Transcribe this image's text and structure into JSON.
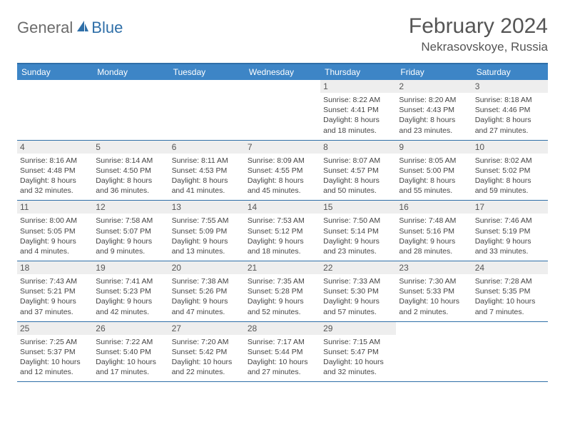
{
  "brand": {
    "part1": "General",
    "part2": "Blue"
  },
  "title": "February 2024",
  "location": "Nekrasovskoye, Russia",
  "colors": {
    "header_bar": "#3d85c6",
    "accent_line": "#2f6fa8",
    "daynum_bg": "#eeeeee",
    "text": "#444444",
    "title_text": "#555555"
  },
  "day_names": [
    "Sunday",
    "Monday",
    "Tuesday",
    "Wednesday",
    "Thursday",
    "Friday",
    "Saturday"
  ],
  "weeks": [
    [
      null,
      null,
      null,
      null,
      {
        "n": "1",
        "sr": "Sunrise: 8:22 AM",
        "ss": "Sunset: 4:41 PM",
        "d1": "Daylight: 8 hours",
        "d2": "and 18 minutes."
      },
      {
        "n": "2",
        "sr": "Sunrise: 8:20 AM",
        "ss": "Sunset: 4:43 PM",
        "d1": "Daylight: 8 hours",
        "d2": "and 23 minutes."
      },
      {
        "n": "3",
        "sr": "Sunrise: 8:18 AM",
        "ss": "Sunset: 4:46 PM",
        "d1": "Daylight: 8 hours",
        "d2": "and 27 minutes."
      }
    ],
    [
      {
        "n": "4",
        "sr": "Sunrise: 8:16 AM",
        "ss": "Sunset: 4:48 PM",
        "d1": "Daylight: 8 hours",
        "d2": "and 32 minutes."
      },
      {
        "n": "5",
        "sr": "Sunrise: 8:14 AM",
        "ss": "Sunset: 4:50 PM",
        "d1": "Daylight: 8 hours",
        "d2": "and 36 minutes."
      },
      {
        "n": "6",
        "sr": "Sunrise: 8:11 AM",
        "ss": "Sunset: 4:53 PM",
        "d1": "Daylight: 8 hours",
        "d2": "and 41 minutes."
      },
      {
        "n": "7",
        "sr": "Sunrise: 8:09 AM",
        "ss": "Sunset: 4:55 PM",
        "d1": "Daylight: 8 hours",
        "d2": "and 45 minutes."
      },
      {
        "n": "8",
        "sr": "Sunrise: 8:07 AM",
        "ss": "Sunset: 4:57 PM",
        "d1": "Daylight: 8 hours",
        "d2": "and 50 minutes."
      },
      {
        "n": "9",
        "sr": "Sunrise: 8:05 AM",
        "ss": "Sunset: 5:00 PM",
        "d1": "Daylight: 8 hours",
        "d2": "and 55 minutes."
      },
      {
        "n": "10",
        "sr": "Sunrise: 8:02 AM",
        "ss": "Sunset: 5:02 PM",
        "d1": "Daylight: 8 hours",
        "d2": "and 59 minutes."
      }
    ],
    [
      {
        "n": "11",
        "sr": "Sunrise: 8:00 AM",
        "ss": "Sunset: 5:05 PM",
        "d1": "Daylight: 9 hours",
        "d2": "and 4 minutes."
      },
      {
        "n": "12",
        "sr": "Sunrise: 7:58 AM",
        "ss": "Sunset: 5:07 PM",
        "d1": "Daylight: 9 hours",
        "d2": "and 9 minutes."
      },
      {
        "n": "13",
        "sr": "Sunrise: 7:55 AM",
        "ss": "Sunset: 5:09 PM",
        "d1": "Daylight: 9 hours",
        "d2": "and 13 minutes."
      },
      {
        "n": "14",
        "sr": "Sunrise: 7:53 AM",
        "ss": "Sunset: 5:12 PM",
        "d1": "Daylight: 9 hours",
        "d2": "and 18 minutes."
      },
      {
        "n": "15",
        "sr": "Sunrise: 7:50 AM",
        "ss": "Sunset: 5:14 PM",
        "d1": "Daylight: 9 hours",
        "d2": "and 23 minutes."
      },
      {
        "n": "16",
        "sr": "Sunrise: 7:48 AM",
        "ss": "Sunset: 5:16 PM",
        "d1": "Daylight: 9 hours",
        "d2": "and 28 minutes."
      },
      {
        "n": "17",
        "sr": "Sunrise: 7:46 AM",
        "ss": "Sunset: 5:19 PM",
        "d1": "Daylight: 9 hours",
        "d2": "and 33 minutes."
      }
    ],
    [
      {
        "n": "18",
        "sr": "Sunrise: 7:43 AM",
        "ss": "Sunset: 5:21 PM",
        "d1": "Daylight: 9 hours",
        "d2": "and 37 minutes."
      },
      {
        "n": "19",
        "sr": "Sunrise: 7:41 AM",
        "ss": "Sunset: 5:23 PM",
        "d1": "Daylight: 9 hours",
        "d2": "and 42 minutes."
      },
      {
        "n": "20",
        "sr": "Sunrise: 7:38 AM",
        "ss": "Sunset: 5:26 PM",
        "d1": "Daylight: 9 hours",
        "d2": "and 47 minutes."
      },
      {
        "n": "21",
        "sr": "Sunrise: 7:35 AM",
        "ss": "Sunset: 5:28 PM",
        "d1": "Daylight: 9 hours",
        "d2": "and 52 minutes."
      },
      {
        "n": "22",
        "sr": "Sunrise: 7:33 AM",
        "ss": "Sunset: 5:30 PM",
        "d1": "Daylight: 9 hours",
        "d2": "and 57 minutes."
      },
      {
        "n": "23",
        "sr": "Sunrise: 7:30 AM",
        "ss": "Sunset: 5:33 PM",
        "d1": "Daylight: 10 hours",
        "d2": "and 2 minutes."
      },
      {
        "n": "24",
        "sr": "Sunrise: 7:28 AM",
        "ss": "Sunset: 5:35 PM",
        "d1": "Daylight: 10 hours",
        "d2": "and 7 minutes."
      }
    ],
    [
      {
        "n": "25",
        "sr": "Sunrise: 7:25 AM",
        "ss": "Sunset: 5:37 PM",
        "d1": "Daylight: 10 hours",
        "d2": "and 12 minutes."
      },
      {
        "n": "26",
        "sr": "Sunrise: 7:22 AM",
        "ss": "Sunset: 5:40 PM",
        "d1": "Daylight: 10 hours",
        "d2": "and 17 minutes."
      },
      {
        "n": "27",
        "sr": "Sunrise: 7:20 AM",
        "ss": "Sunset: 5:42 PM",
        "d1": "Daylight: 10 hours",
        "d2": "and 22 minutes."
      },
      {
        "n": "28",
        "sr": "Sunrise: 7:17 AM",
        "ss": "Sunset: 5:44 PM",
        "d1": "Daylight: 10 hours",
        "d2": "and 27 minutes."
      },
      {
        "n": "29",
        "sr": "Sunrise: 7:15 AM",
        "ss": "Sunset: 5:47 PM",
        "d1": "Daylight: 10 hours",
        "d2": "and 32 minutes."
      },
      null,
      null
    ]
  ]
}
